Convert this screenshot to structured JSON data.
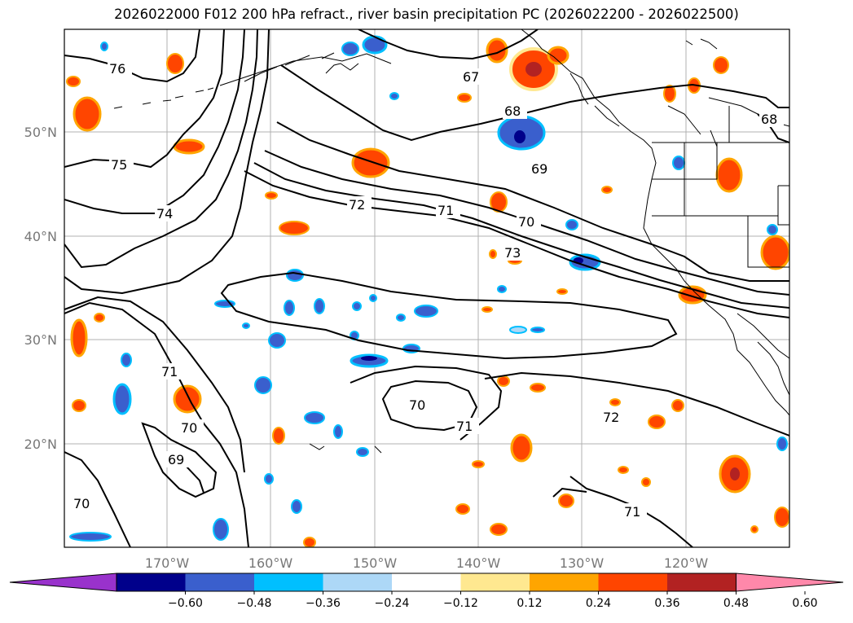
{
  "title": "2026022000 F012 200 hPa refract., river basin precipitation PC (2026022200 - 2026022500)",
  "lat_labels": [
    "50°N",
    "40°N",
    "30°N",
    "20°N"
  ],
  "lon_labels": [
    "170°W",
    "160°W",
    "150°W",
    "140°W",
    "130°W",
    "120°W"
  ],
  "contour_labels": [
    "76",
    "75",
    "74",
    "72",
    "71",
    "70",
    "73",
    "67",
    "68",
    "69",
    "68",
    "71",
    "70",
    "69",
    "70",
    "70",
    "71",
    "72",
    "71"
  ],
  "colorbar": {
    "colors": [
      "#9932cc",
      "#00008b",
      "#3a5fcd",
      "#00bfff",
      "#add8f7",
      "#ffffff",
      "#ffe890",
      "#ffa500",
      "#ff4500",
      "#b22222",
      "#ff88aa"
    ],
    "ticks": [
      "−0.60",
      "−0.48",
      "−0.36",
      "−0.24",
      "−0.12",
      "0.12",
      "0.24",
      "0.36",
      "0.48",
      "0.60"
    ]
  }
}
